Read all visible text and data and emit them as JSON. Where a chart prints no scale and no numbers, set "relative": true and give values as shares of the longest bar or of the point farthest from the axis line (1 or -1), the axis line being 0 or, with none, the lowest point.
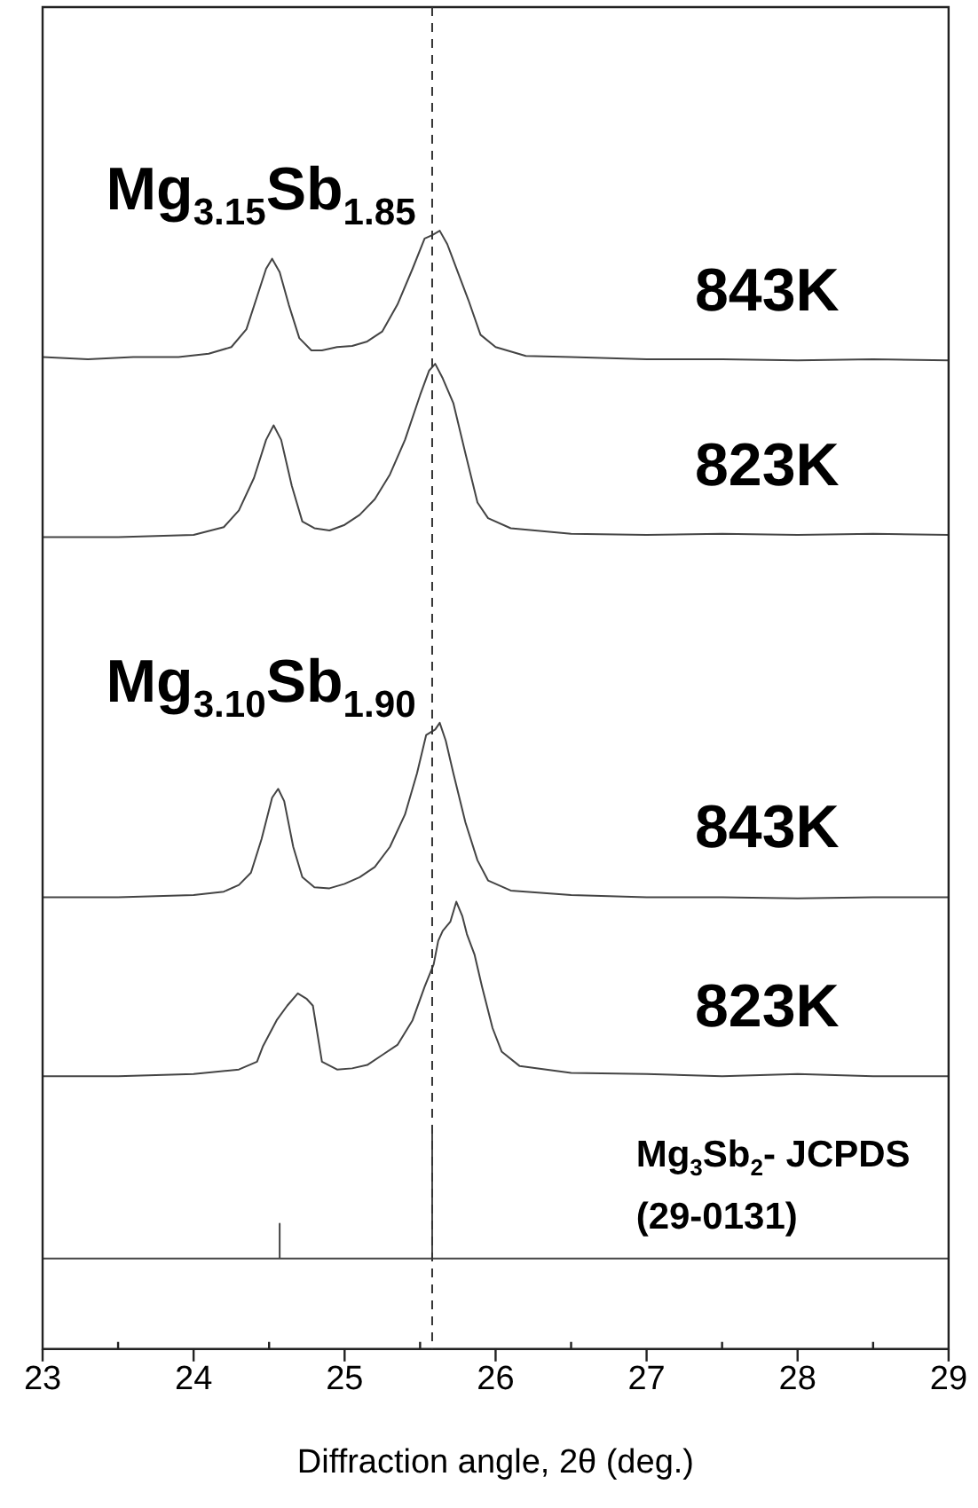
{
  "chart_data": {
    "type": "line",
    "relative": true,
    "xlabel": "Diffraction angle, 2θ (deg.)",
    "xlim": [
      23,
      29
    ],
    "xticks": [
      23,
      24,
      25,
      26,
      27,
      28,
      29
    ],
    "grid": false,
    "legend": false,
    "marker": "none",
    "line_style": "solid",
    "series": [
      {
        "name": "843K",
        "color": "#444444",
        "x": [
          23.0,
          23.3,
          23.6,
          23.9,
          24.1,
          24.25,
          24.35,
          24.42,
          24.48,
          24.52,
          24.57,
          24.63,
          24.7,
          24.78,
          24.85,
          24.95,
          25.05,
          25.15,
          25.25,
          25.35,
          25.45,
          25.53,
          25.58,
          25.63,
          25.68,
          25.75,
          25.82,
          25.9,
          26.0,
          26.2,
          26.5,
          27.0,
          27.5,
          28.0,
          28.5,
          29.0
        ],
        "values": [
          0.887,
          0.885,
          0.887,
          0.887,
          0.89,
          0.896,
          0.912,
          0.941,
          0.966,
          0.975,
          0.963,
          0.934,
          0.904,
          0.893,
          0.893,
          0.896,
          0.897,
          0.901,
          0.91,
          0.934,
          0.966,
          0.993,
          0.996,
          1.0,
          0.988,
          0.963,
          0.938,
          0.907,
          0.896,
          0.888,
          0.887,
          0.885,
          0.885,
          0.884,
          0.885,
          0.884
        ]
      },
      {
        "name": "823K",
        "color": "#444444",
        "x": [
          23.0,
          23.5,
          24.0,
          24.2,
          24.3,
          24.4,
          24.48,
          24.53,
          24.58,
          24.65,
          24.72,
          24.8,
          24.9,
          25.0,
          25.1,
          25.2,
          25.3,
          25.4,
          25.5,
          25.56,
          25.6,
          25.65,
          25.72,
          25.8,
          25.88,
          25.95,
          26.1,
          26.5,
          27.0,
          27.5,
          28.0,
          28.5,
          29.0
        ],
        "values": [
          0.726,
          0.726,
          0.728,
          0.735,
          0.75,
          0.779,
          0.813,
          0.826,
          0.813,
          0.772,
          0.74,
          0.734,
          0.732,
          0.737,
          0.746,
          0.76,
          0.782,
          0.813,
          0.853,
          0.875,
          0.881,
          0.868,
          0.846,
          0.801,
          0.757,
          0.743,
          0.734,
          0.729,
          0.728,
          0.729,
          0.728,
          0.729,
          0.728
        ]
      },
      {
        "name": "843K",
        "color": "#444444",
        "x": [
          23.0,
          23.5,
          24.0,
          24.2,
          24.3,
          24.38,
          24.45,
          24.52,
          24.56,
          24.6,
          24.66,
          24.72,
          24.8,
          24.9,
          25.0,
          25.1,
          25.2,
          25.3,
          25.4,
          25.48,
          25.54,
          25.6,
          25.63,
          25.67,
          25.72,
          25.8,
          25.88,
          25.95,
          26.1,
          26.5,
          27.0,
          27.5,
          28.0,
          28.5,
          29.0
        ],
        "values": [
          0.404,
          0.404,
          0.406,
          0.409,
          0.415,
          0.426,
          0.456,
          0.493,
          0.501,
          0.49,
          0.449,
          0.422,
          0.413,
          0.412,
          0.416,
          0.422,
          0.431,
          0.449,
          0.478,
          0.515,
          0.549,
          0.554,
          0.56,
          0.544,
          0.515,
          0.471,
          0.437,
          0.419,
          0.41,
          0.406,
          0.404,
          0.404,
          0.403,
          0.404,
          0.404
        ]
      },
      {
        "name": "823K",
        "color": "#444444",
        "x": [
          23.0,
          23.5,
          24.0,
          24.3,
          24.42,
          24.46,
          24.55,
          24.62,
          24.69,
          24.75,
          24.79,
          24.85,
          24.95,
          25.05,
          25.15,
          25.25,
          25.35,
          25.45,
          25.53,
          25.59,
          25.62,
          25.65,
          25.7,
          25.74,
          25.78,
          25.81,
          25.86,
          25.91,
          25.98,
          26.04,
          26.16,
          26.5,
          27.0,
          27.5,
          28.0,
          28.5,
          29.0
        ],
        "values": [
          0.244,
          0.244,
          0.246,
          0.25,
          0.257,
          0.271,
          0.294,
          0.307,
          0.318,
          0.313,
          0.307,
          0.257,
          0.25,
          0.251,
          0.254,
          0.263,
          0.272,
          0.294,
          0.324,
          0.344,
          0.365,
          0.374,
          0.382,
          0.4,
          0.387,
          0.371,
          0.353,
          0.324,
          0.287,
          0.266,
          0.253,
          0.247,
          0.246,
          0.244,
          0.246,
          0.244,
          0.244
        ]
      },
      {
        "name": "Mg$_{3}$Sb$_{2}$- JCPDS (29-0131)",
        "color": "#444444",
        "x": [
          23.0,
          24.57,
          24.57,
          24.57,
          25.58,
          25.58,
          25.58,
          29.0
        ],
        "values": [
          0.081,
          0.081,
          0.112,
          0.081,
          0.081,
          0.196,
          0.081,
          0.081
        ]
      }
    ],
    "ref_lines": [
      {
        "axis": "x",
        "value": 25.58,
        "color": "#333333",
        "line_style": "dashed"
      }
    ],
    "annotations": [
      "Mg$_{3.15}$Sb$_{1.85}$",
      "Mg$_{3.10}$Sb$_{1.90}$"
    ]
  }
}
